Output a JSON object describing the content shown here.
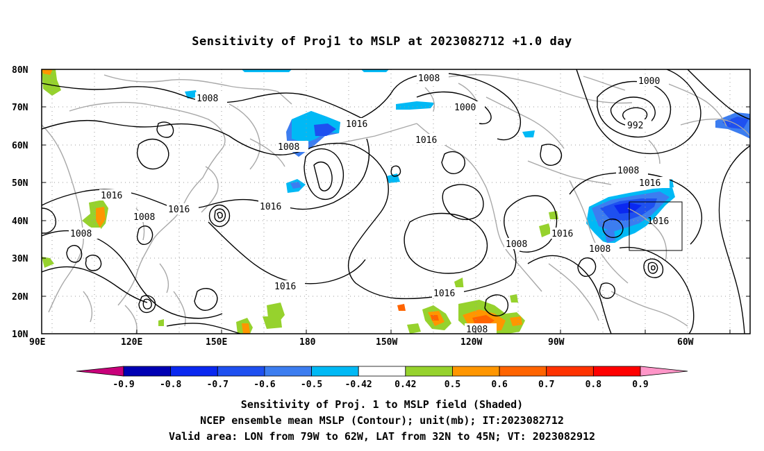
{
  "title": "Sensitivity of Proj1 to MSLP at 2023082712 +1.0 day",
  "y_axis_labels": [
    "80N",
    "70N",
    "60N",
    "50N",
    "40N",
    "30N",
    "20N",
    "10N"
  ],
  "x_axis_labels": [
    "90E",
    "120E",
    "150E",
    "180",
    "150W",
    "120W",
    "90W",
    "60W"
  ],
  "contour_labels": [
    "1008",
    "1008",
    "1008",
    "1008",
    "1008",
    "1008",
    "1008",
    "1008",
    "1008",
    "1000",
    "1000",
    "992",
    "1016",
    "1016",
    "1016",
    "1016",
    "1016",
    "1016",
    "1016",
    "1016",
    "1016"
  ],
  "colorbar": {
    "labels": [
      "-0.9",
      "-0.8",
      "-0.7",
      "-0.6",
      "-0.5",
      "-0.42",
      "0.42",
      "0.5",
      "0.6",
      "0.7",
      "0.8",
      "0.9"
    ],
    "colors": [
      "#c8007a",
      "#0000b4",
      "#0a28f0",
      "#1e50f0",
      "#3c7df0",
      "#00b9f5",
      "#ffffff",
      "#96d22d",
      "#ff9600",
      "#ff6400",
      "#ff3200",
      "#ff0000",
      "#ff96c8"
    ]
  },
  "footer": {
    "line1": "Sensitivity of Proj. 1 to MSLP field (Shaded)",
    "line2": "NCEP ensemble mean MSLP (Contour); unit(mb); IT:2023082712",
    "line3": "Valid area: LON from 79W to 62W, LAT from 32N to 45N; VT: 2023082912"
  }
}
